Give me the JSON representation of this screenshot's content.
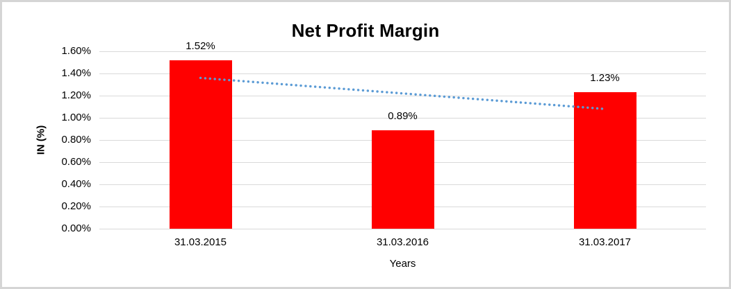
{
  "chart_data": {
    "type": "bar",
    "title": "Net Profit Margin",
    "categories": [
      "31.03.2015",
      "31.03.2016",
      "31.03.2017"
    ],
    "values": [
      1.52,
      0.89,
      1.23
    ],
    "data_labels": [
      "1.52%",
      "0.89%",
      "1.23%"
    ],
    "xlabel": "Years",
    "ylabel": "IN (%)",
    "ylim": [
      0,
      1.6
    ],
    "ytick_step": 0.2,
    "ytick_labels": [
      "0.00%",
      "0.20%",
      "0.40%",
      "0.60%",
      "0.80%",
      "1.00%",
      "1.20%",
      "1.40%",
      "1.60%"
    ],
    "grid": true,
    "legend": "none",
    "bar_color": "#ff0000",
    "gridline_color": "#d9d9d9",
    "text_color": "#000000",
    "trendline": {
      "type": "linear",
      "style": "dotted",
      "color": "#5b9bd5",
      "start_value": 1.36,
      "end_value": 1.08
    }
  }
}
